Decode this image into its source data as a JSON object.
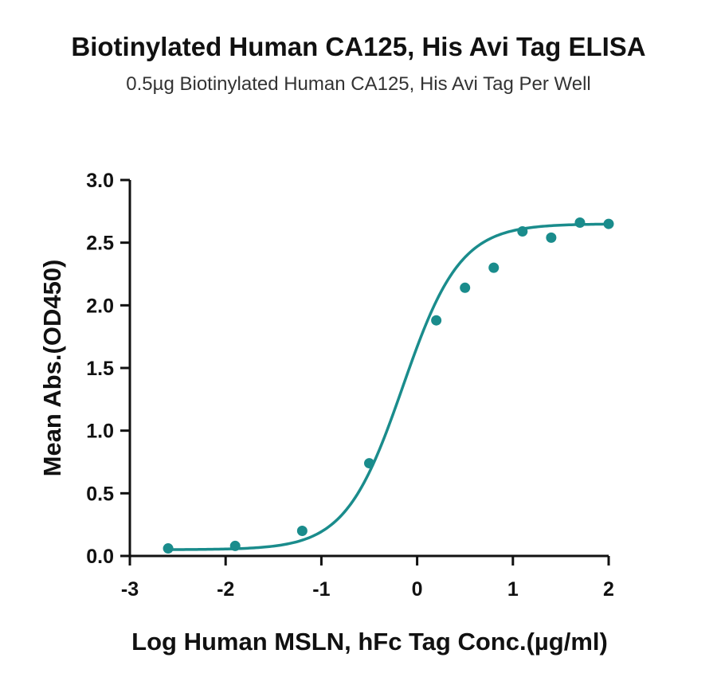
{
  "chart_data": {
    "type": "scatter",
    "title": "Biotinylated Human CA125, His Avi Tag ELISA",
    "subtitle": "0.5µg Biotinylated Human CA125, His Avi Tag Per Well",
    "xlabel": "Log Human MSLN, hFc Tag Conc.(µg/ml)",
    "ylabel": "Mean Abs.(OD450)",
    "xlim": [
      -3,
      2
    ],
    "ylim": [
      0,
      3
    ],
    "xticks": [
      "-3",
      "-2",
      "-1",
      "0",
      "1",
      "2"
    ],
    "yticks": [
      "0.0",
      "0.5",
      "1.0",
      "1.5",
      "2.0",
      "2.5",
      "3.0"
    ],
    "grid": false,
    "color": "#1a8c8c",
    "series": [
      {
        "points": [
          {
            "x": -2.6,
            "y": 0.06
          },
          {
            "x": -1.9,
            "y": 0.08
          },
          {
            "x": -1.2,
            "y": 0.2
          },
          {
            "x": -0.5,
            "y": 0.74
          },
          {
            "x": 0.2,
            "y": 1.88
          },
          {
            "x": 0.5,
            "y": 2.14
          },
          {
            "x": 0.8,
            "y": 2.3
          },
          {
            "x": 1.1,
            "y": 2.59
          },
          {
            "x": 1.4,
            "y": 2.54
          },
          {
            "x": 1.7,
            "y": 2.66
          },
          {
            "x": 2.0,
            "y": 2.65
          }
        ],
        "fit": {
          "model": "4PL",
          "bottom": 0.05,
          "top": 2.65,
          "logEC50": -0.15,
          "hill": 1.45
        }
      }
    ]
  }
}
